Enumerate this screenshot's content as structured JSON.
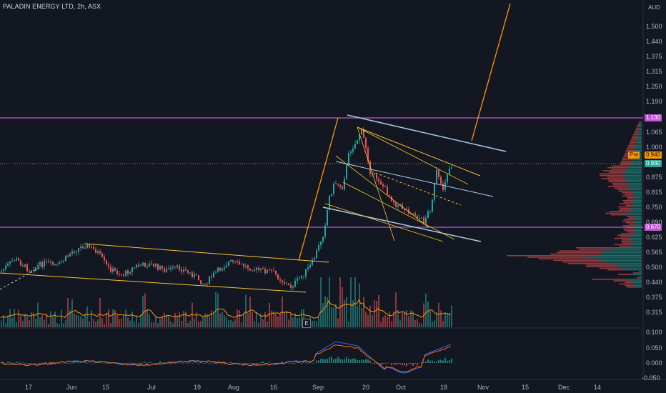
{
  "header": {
    "title": "PALADIN ENERGY LTD, 2h, ASX",
    "currency": "AUD"
  },
  "price_axis": {
    "ticks": [
      "1.500",
      "1.440",
      "1.375",
      "1.315",
      "1.250",
      "1.190",
      "1.065",
      "1.000",
      "0.875",
      "0.815",
      "0.750",
      "0.690",
      "0.625",
      "0.565",
      "0.500",
      "0.440",
      "0.375",
      "0.315"
    ]
  },
  "price_tags": {
    "resistance": "1.130",
    "pre_label": "Pre",
    "pre_price": "0.940",
    "last": "0.930",
    "support": "0.670"
  },
  "indicator_axis": {
    "ticks": [
      "0.100",
      "0.050",
      "0.000",
      "-0.050"
    ]
  },
  "time_axis": {
    "ticks": [
      "17",
      "Jun",
      "15",
      "Jul",
      "19",
      "Aug",
      "16",
      "Sep",
      "20",
      "Oct",
      "18",
      "Nov",
      "15",
      "Dec",
      "14"
    ]
  },
  "events": {
    "earnings_badge": "E"
  },
  "colors": {
    "background": "#131722",
    "up": "#26a69a",
    "down": "#ef5350",
    "trendline": "#f7c12f",
    "channel": "#a9cbe8",
    "projection": "#ff9800",
    "level": "#c055d3",
    "macd": "#2962ff",
    "signal": "#ff6d00"
  }
}
